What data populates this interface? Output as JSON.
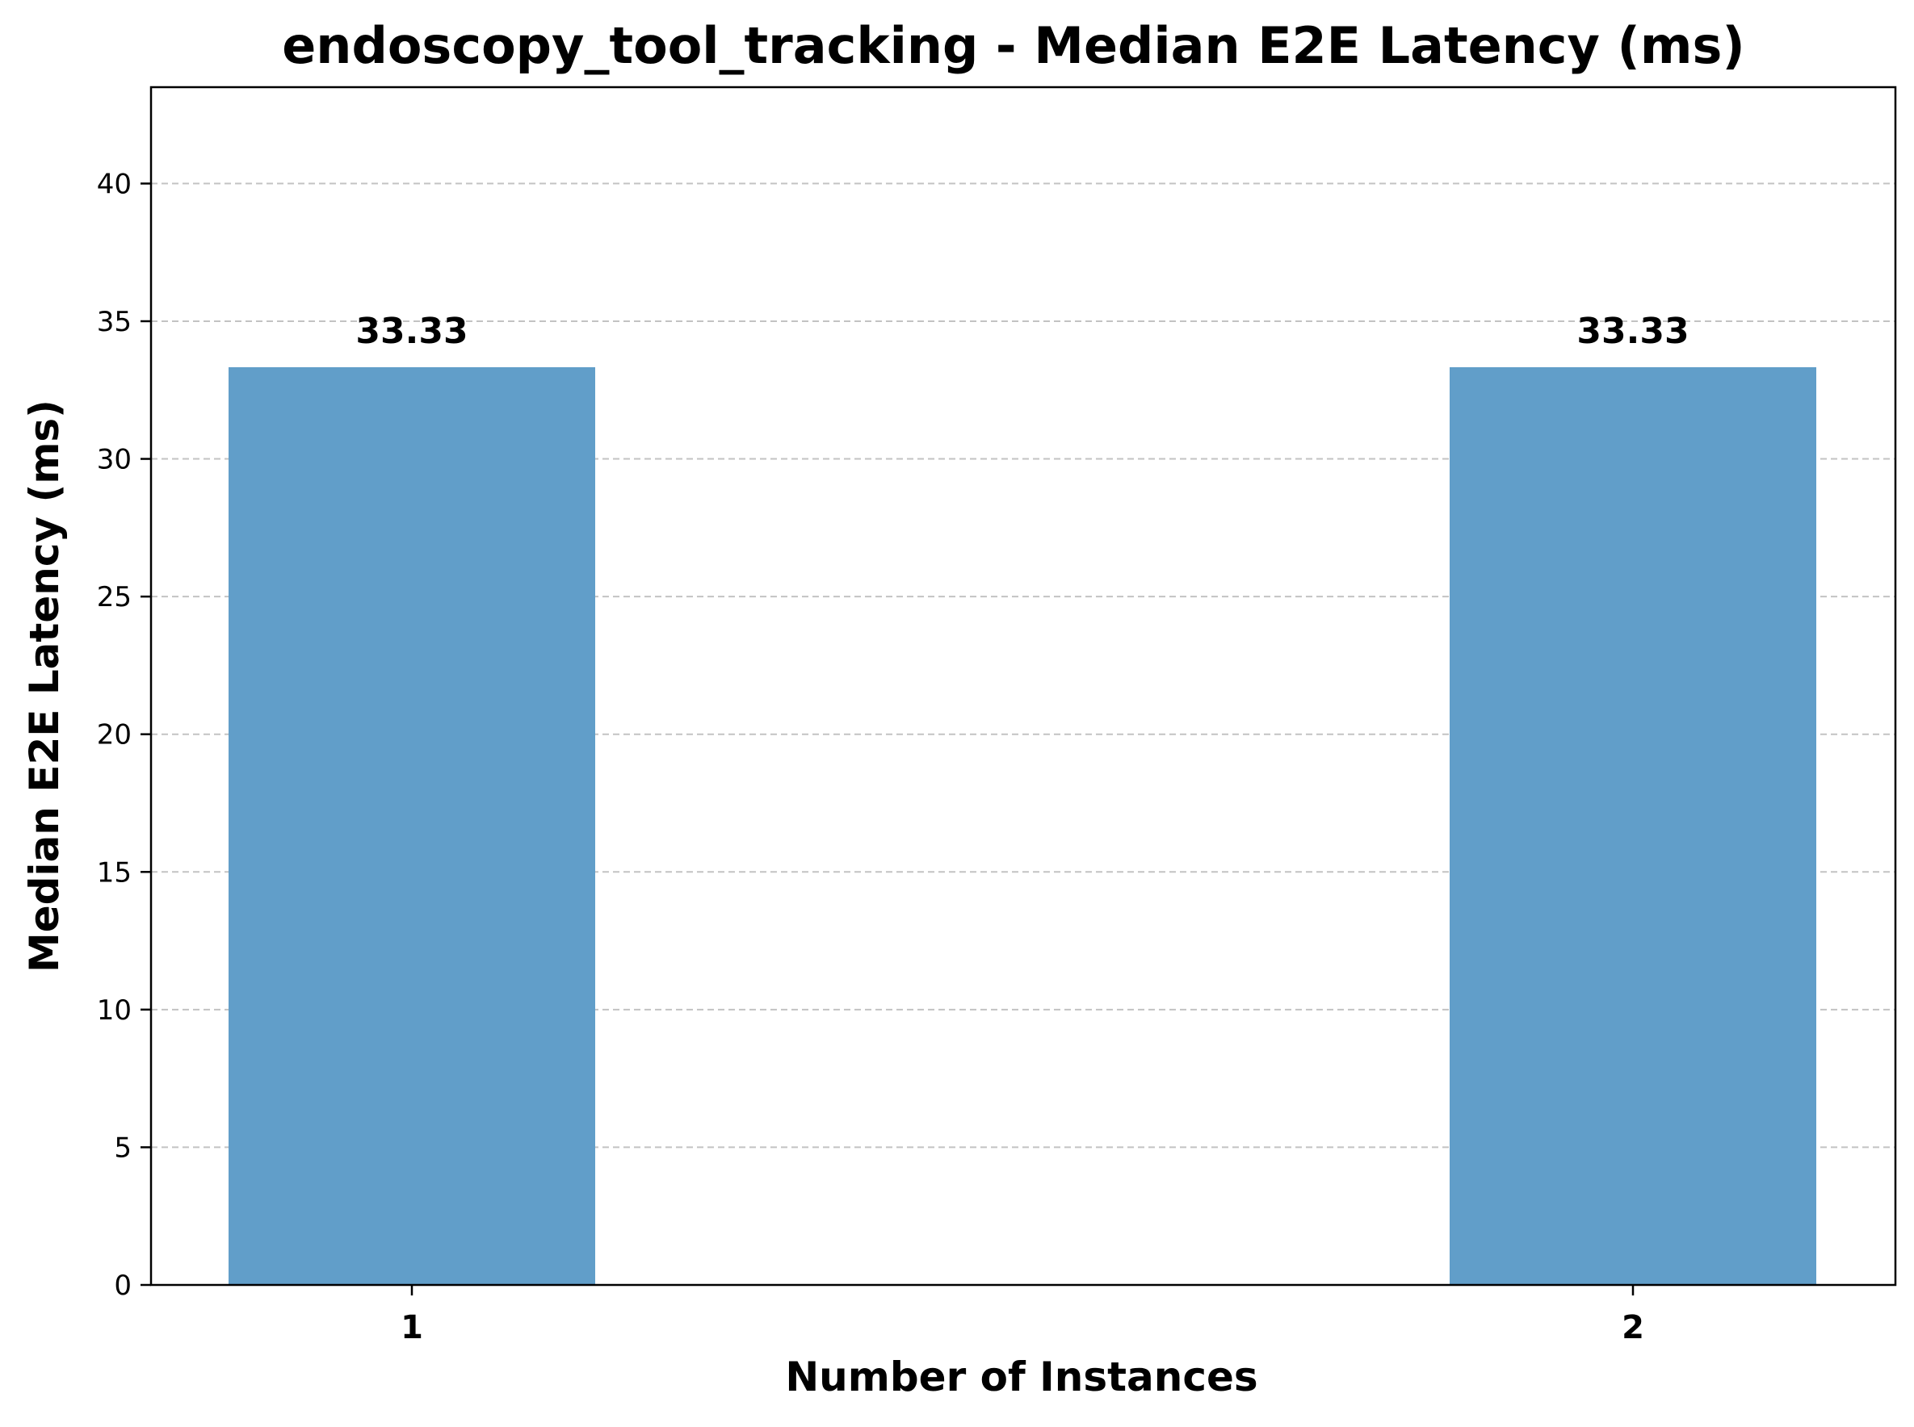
{
  "chart_data": {
    "type": "bar",
    "title": "endoscopy_tool_tracking - Median E2E Latency (ms)",
    "xlabel": "Number of Instances",
    "ylabel": "Median E2E Latency (ms)",
    "categories": [
      "1",
      "2"
    ],
    "values": [
      33.33,
      33.33
    ],
    "data_labels": [
      "33.33",
      "33.33"
    ],
    "ylim": [
      0,
      43.5
    ],
    "yticks": [
      0,
      5,
      10,
      15,
      20,
      25,
      30,
      35,
      40
    ],
    "grid": "horizontal dashed",
    "bar_color": "#619ec9"
  }
}
